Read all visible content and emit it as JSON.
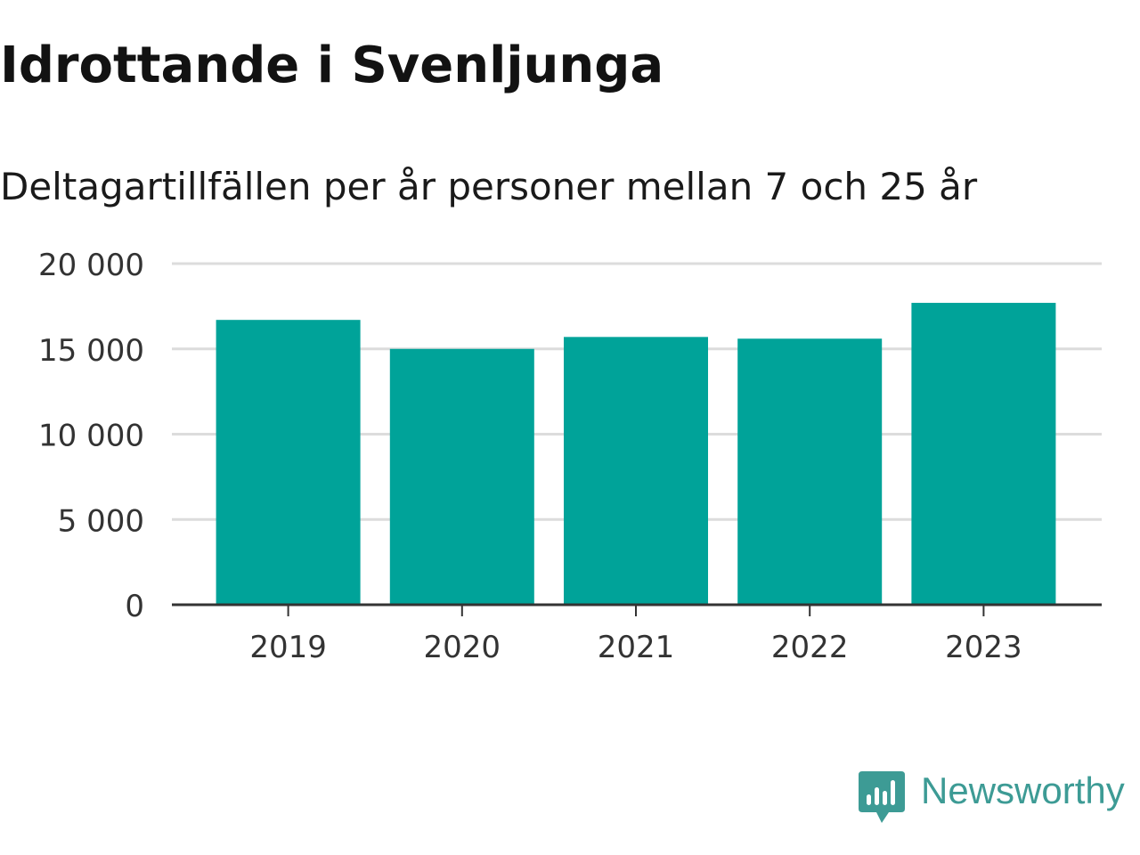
{
  "title": "Idrottande i Svenljunga",
  "subtitle": "Deltagartillfällen per år personer mellan 7 och 25 år",
  "brand": {
    "name": "Newsworthy",
    "icon": "newsworthy-logo-icon",
    "color": "#3d9b95"
  },
  "colors": {
    "bar": "#00a399",
    "grid": "#dcdcdc",
    "axis": "#333333"
  },
  "chart_data": {
    "type": "bar",
    "categories": [
      "2019",
      "2020",
      "2021",
      "2022",
      "2023"
    ],
    "values": [
      16700,
      15000,
      15700,
      15600,
      17700
    ],
    "ylim": [
      0,
      20000
    ],
    "yticks": [
      0,
      5000,
      10000,
      15000,
      20000
    ],
    "ytick_labels": [
      "0",
      "5 000",
      "10 000",
      "15 000",
      "20 000"
    ],
    "xlabel": "",
    "ylabel": "",
    "grid": true,
    "legend": false
  }
}
